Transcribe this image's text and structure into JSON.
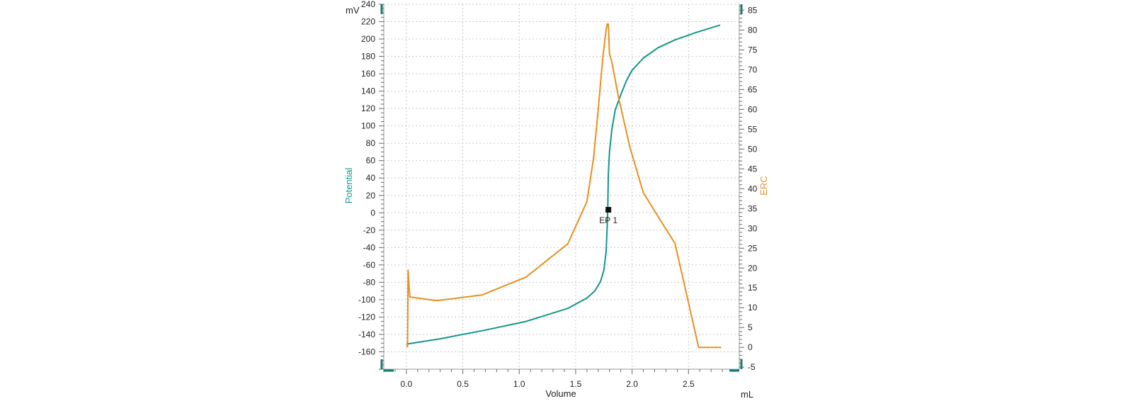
{
  "chart_data": {
    "type": "line",
    "xlabel": "Volume",
    "x_unit": "mL",
    "xlim": [
      -0.2,
      2.95
    ],
    "x_ticks": [
      0.0,
      0.5,
      1.0,
      1.5,
      2.0,
      2.5
    ],
    "x_tick_labels": [
      "0.0",
      "0.5",
      "1.0",
      "1.5",
      "2.0",
      "2.5"
    ],
    "y_left": {
      "label": "Potential",
      "unit": "mV",
      "lim": [
        -180,
        240
      ],
      "ticks": [
        240,
        220,
        200,
        180,
        160,
        140,
        120,
        100,
        80,
        60,
        40,
        20,
        0,
        -20,
        -40,
        -60,
        -80,
        -100,
        -120,
        -140,
        -160
      ],
      "tick_labels": [
        "240",
        "220",
        "200",
        "180",
        "160",
        "140",
        "120",
        "100",
        "80",
        "60",
        "40",
        "20",
        "0",
        "-20",
        "-40",
        "-60",
        "-80",
        "-100",
        "-120",
        "-140",
        "-160"
      ]
    },
    "y_right": {
      "label": "ERC",
      "lim": [
        -5.5,
        86.5
      ],
      "ticks": [
        85,
        80,
        75,
        70,
        65,
        60,
        55,
        50,
        45,
        40,
        35,
        30,
        25,
        20,
        15,
        10,
        5,
        0,
        -5
      ],
      "tick_labels": [
        "85",
        "80",
        "75",
        "70",
        "65",
        "60",
        "55",
        "50",
        "45",
        "40",
        "35",
        "30",
        "25",
        "20",
        "15",
        "10",
        "5",
        "0",
        "-5"
      ]
    },
    "grid": true,
    "series": [
      {
        "name": "Potential",
        "axis": "left",
        "color": "#139688",
        "x": [
          0.0,
          0.01,
          0.3,
          0.7,
          1.06,
          1.43,
          1.6,
          1.67,
          1.72,
          1.75,
          1.77,
          1.78,
          1.785,
          1.79,
          1.8,
          1.82,
          1.85,
          1.9,
          1.95,
          2.0,
          2.1,
          2.23,
          2.38,
          2.58,
          2.78
        ],
        "y": [
          -151,
          -151,
          -145,
          -135,
          -125,
          -110,
          -98,
          -90,
          -79,
          -66,
          -45,
          -15,
          5,
          45,
          70,
          95,
          118,
          136,
          152,
          164,
          178,
          190,
          199,
          208,
          216
        ]
      },
      {
        "name": "ERC",
        "axis": "right",
        "color": "#e7901f",
        "x": [
          0.0,
          0.01,
          0.015,
          0.02,
          0.03,
          0.27,
          0.67,
          1.06,
          1.43,
          1.6,
          1.66,
          1.7,
          1.74,
          1.77,
          1.78,
          1.79,
          1.8,
          1.82,
          1.88,
          1.98,
          2.1,
          2.23,
          2.38,
          2.59,
          2.79
        ],
        "y": [
          0.2,
          0.2,
          19.5,
          17,
          12.7,
          11.8,
          13.2,
          17.7,
          26.1,
          36.8,
          48,
          60,
          73,
          80,
          81.5,
          81.5,
          74,
          72,
          63,
          50.5,
          39,
          33,
          26.2,
          0,
          0
        ]
      }
    ],
    "annotations": [
      {
        "text": "EP 1",
        "x": 1.79,
        "y": 3.5,
        "axis": "left"
      }
    ]
  }
}
